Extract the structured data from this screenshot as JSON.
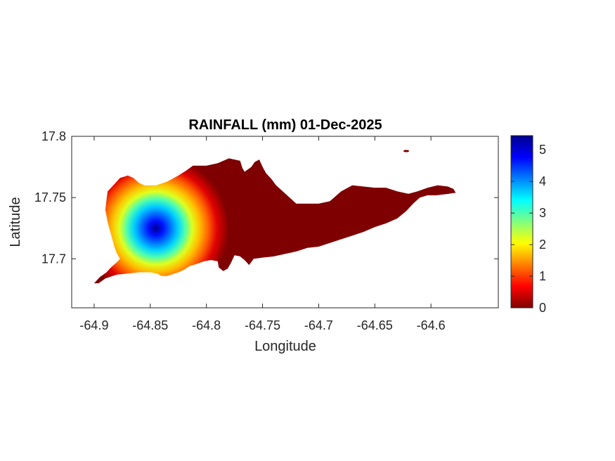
{
  "chart_data": {
    "type": "heatmap",
    "title": "RAINFALL (mm) 01-Dec-2025",
    "xlabel": "Longitude",
    "ylabel": "Latitude",
    "xlim": [
      -64.92,
      -64.54
    ],
    "ylim": [
      17.66,
      17.8
    ],
    "x_ticks": [
      {
        "value": -64.9,
        "label": "-64.9"
      },
      {
        "value": -64.85,
        "label": "-64.85"
      },
      {
        "value": -64.8,
        "label": "-64.8"
      },
      {
        "value": -64.75,
        "label": "-64.75"
      },
      {
        "value": -64.7,
        "label": "-64.7"
      },
      {
        "value": -64.65,
        "label": "-64.65"
      },
      {
        "value": -64.6,
        "label": "-64.6"
      }
    ],
    "y_ticks": [
      {
        "value": 17.7,
        "label": "17.7"
      },
      {
        "value": 17.75,
        "label": "17.75"
      },
      {
        "value": 17.8,
        "label": "17.8"
      }
    ],
    "colorbar": {
      "colormap": "jet",
      "range": [
        0,
        5.45
      ],
      "ticks": [
        {
          "value": 0,
          "label": "0"
        },
        {
          "value": 1,
          "label": "1"
        },
        {
          "value": 2,
          "label": "2"
        },
        {
          "value": 3,
          "label": "3"
        },
        {
          "value": 4,
          "label": "4"
        },
        {
          "value": 5,
          "label": "5"
        }
      ]
    },
    "rainfall_peak": {
      "lon": -64.845,
      "lat": 17.725,
      "value": 5.4
    },
    "rainfall_minimum_east_of_lon": -64.78,
    "grid": false,
    "box": true,
    "island_outline": [
      [
        -64.9,
        17.68
      ],
      [
        -64.895,
        17.685
      ],
      [
        -64.889,
        17.689
      ],
      [
        -64.885,
        17.693
      ],
      [
        -64.88,
        17.697
      ],
      [
        -64.877,
        17.7
      ],
      [
        -64.88,
        17.705
      ],
      [
        -64.882,
        17.71
      ],
      [
        -64.885,
        17.72
      ],
      [
        -64.888,
        17.73
      ],
      [
        -64.89,
        17.74
      ],
      [
        -64.889,
        17.748
      ],
      [
        -64.888,
        17.755
      ],
      [
        -64.883,
        17.76
      ],
      [
        -64.877,
        17.766
      ],
      [
        -64.87,
        17.768
      ],
      [
        -64.865,
        17.766
      ],
      [
        -64.86,
        17.762
      ],
      [
        -64.855,
        17.76
      ],
      [
        -64.845,
        17.76
      ],
      [
        -64.835,
        17.763
      ],
      [
        -64.825,
        17.768
      ],
      [
        -64.818,
        17.772
      ],
      [
        -64.812,
        17.776
      ],
      [
        -64.8,
        17.776
      ],
      [
        -64.79,
        17.778
      ],
      [
        -64.78,
        17.782
      ],
      [
        -64.775,
        17.781
      ],
      [
        -64.77,
        17.78
      ],
      [
        -64.768,
        17.774
      ],
      [
        -64.766,
        17.771
      ],
      [
        -64.76,
        17.775
      ],
      [
        -64.757,
        17.779
      ],
      [
        -64.753,
        17.781
      ],
      [
        -64.75,
        17.775
      ],
      [
        -64.747,
        17.77
      ],
      [
        -64.742,
        17.765
      ],
      [
        -64.738,
        17.76
      ],
      [
        -64.732,
        17.755
      ],
      [
        -64.726,
        17.75
      ],
      [
        -64.72,
        17.745
      ],
      [
        -64.71,
        17.745
      ],
      [
        -64.7,
        17.745
      ],
      [
        -64.69,
        17.747
      ],
      [
        -64.68,
        17.755
      ],
      [
        -64.67,
        17.76
      ],
      [
        -64.66,
        17.759
      ],
      [
        -64.65,
        17.758
      ],
      [
        -64.64,
        17.758
      ],
      [
        -64.63,
        17.755
      ],
      [
        -64.62,
        17.753
      ],
      [
        -64.612,
        17.755
      ],
      [
        -64.603,
        17.758
      ],
      [
        -64.594,
        17.76
      ],
      [
        -64.585,
        17.759
      ],
      [
        -64.58,
        17.757
      ],
      [
        -64.578,
        17.754
      ],
      [
        -64.585,
        17.753
      ],
      [
        -64.595,
        17.752
      ],
      [
        -64.603,
        17.752
      ],
      [
        -64.61,
        17.75
      ],
      [
        -64.616,
        17.745
      ],
      [
        -64.622,
        17.739
      ],
      [
        -64.63,
        17.733
      ],
      [
        -64.64,
        17.729
      ],
      [
        -64.65,
        17.726
      ],
      [
        -64.66,
        17.722
      ],
      [
        -64.67,
        17.719
      ],
      [
        -64.68,
        17.716
      ],
      [
        -64.69,
        17.713
      ],
      [
        -64.7,
        17.71
      ],
      [
        -64.71,
        17.709
      ],
      [
        -64.72,
        17.706
      ],
      [
        -64.73,
        17.704
      ],
      [
        -64.74,
        17.702
      ],
      [
        -64.75,
        17.701
      ],
      [
        -64.758,
        17.7
      ],
      [
        -64.762,
        17.695
      ],
      [
        -64.766,
        17.699
      ],
      [
        -64.77,
        17.702
      ],
      [
        -64.775,
        17.703
      ],
      [
        -64.778,
        17.697
      ],
      [
        -64.781,
        17.692
      ],
      [
        -64.785,
        17.69
      ],
      [
        -64.789,
        17.693
      ],
      [
        -64.79,
        17.698
      ],
      [
        -64.796,
        17.699
      ],
      [
        -64.802,
        17.698
      ],
      [
        -64.808,
        17.696
      ],
      [
        -64.815,
        17.694
      ],
      [
        -64.82,
        17.691
      ],
      [
        -64.825,
        17.689
      ],
      [
        -64.835,
        17.686
      ],
      [
        -64.84,
        17.686
      ],
      [
        -64.844,
        17.688
      ],
      [
        -64.85,
        17.689
      ],
      [
        -64.86,
        17.689
      ],
      [
        -64.87,
        17.688
      ],
      [
        -64.88,
        17.687
      ],
      [
        -64.89,
        17.684
      ],
      [
        -64.896,
        17.68
      ]
    ],
    "islet": {
      "lon": -64.622,
      "lat": 17.788
    }
  }
}
